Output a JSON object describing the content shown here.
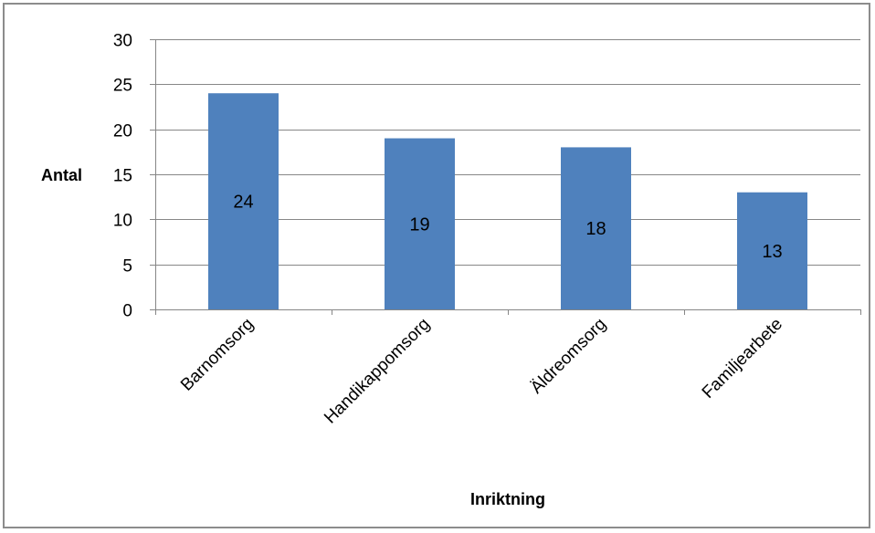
{
  "chart_data": {
    "type": "bar",
    "categories": [
      "Barnomsorg",
      "Handikappomsorg",
      "Äldreomsorg",
      "Familjearbete"
    ],
    "values": [
      24,
      19,
      18,
      13
    ],
    "data_labels": [
      "24",
      "19",
      "18",
      "13"
    ],
    "title": "",
    "xlabel": "Inriktning",
    "ylabel": "Antal",
    "ylim": [
      0,
      30
    ],
    "yticks": [
      "0",
      "5",
      "10",
      "15",
      "20",
      "25",
      "30"
    ],
    "grid": true,
    "legend": "none",
    "bar_color": "#4F81BD",
    "gridline_color": "#878787",
    "axis_color": "#868686",
    "frame_color": "#8c8c8c"
  }
}
